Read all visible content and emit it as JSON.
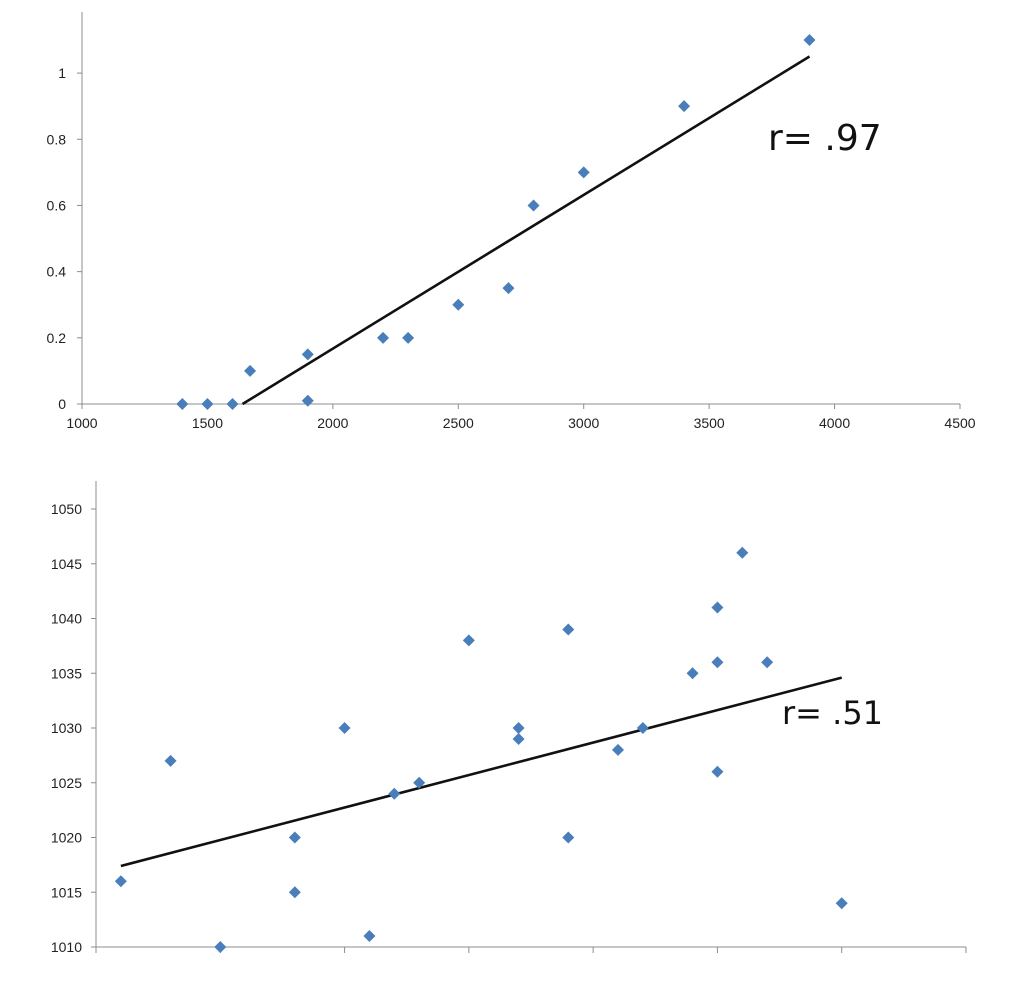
{
  "chart_data": [
    {
      "type": "scatter",
      "title": "",
      "xlabel": "",
      "ylabel": "",
      "xlim": [
        1000,
        4500
      ],
      "ylim": [
        0,
        1.1
      ],
      "x_ticks": [
        "1000",
        "1500",
        "2000",
        "2500",
        "3000",
        "3500",
        "4000",
        "4500"
      ],
      "y_ticks": [
        "0",
        "0.2",
        "0.4",
        "0.6",
        "0.8",
        "1"
      ],
      "grid": false,
      "marker_color": "#4a7ebb",
      "points": [
        {
          "x": 1400,
          "y": 0
        },
        {
          "x": 1500,
          "y": 0
        },
        {
          "x": 1600,
          "y": 0
        },
        {
          "x": 1670,
          "y": 0.1
        },
        {
          "x": 1900,
          "y": 0.15
        },
        {
          "x": 1900,
          "y": 0.01
        },
        {
          "x": 2200,
          "y": 0.2
        },
        {
          "x": 2300,
          "y": 0.2
        },
        {
          "x": 2500,
          "y": 0.3
        },
        {
          "x": 2700,
          "y": 0.35
        },
        {
          "x": 2800,
          "y": 0.6
        },
        {
          "x": 3000,
          "y": 0.7
        },
        {
          "x": 3400,
          "y": 0.9
        },
        {
          "x": 3900,
          "y": 1.1
        }
      ],
      "trendline": {
        "x1": 1640,
        "y1": 0,
        "x2": 3900,
        "y2": 1.05
      },
      "annotation": "r= .97"
    },
    {
      "type": "scatter",
      "title": "",
      "xlabel": "",
      "ylabel": "",
      "xlim": [
        0,
        35
      ],
      "ylim": [
        1010,
        1050
      ],
      "x_ticks": [],
      "y_ticks": [
        "1010",
        "1015",
        "1020",
        "1025",
        "1030",
        "1035",
        "1040",
        "1045",
        "1050"
      ],
      "grid": false,
      "marker_color": "#4a7ebb",
      "points": [
        {
          "x": 1,
          "y": 1016
        },
        {
          "x": 3,
          "y": 1027
        },
        {
          "x": 5,
          "y": 1010
        },
        {
          "x": 8,
          "y": 1020
        },
        {
          "x": 8,
          "y": 1015
        },
        {
          "x": 10,
          "y": 1030
        },
        {
          "x": 11,
          "y": 1011
        },
        {
          "x": 12,
          "y": 1024
        },
        {
          "x": 13,
          "y": 1025
        },
        {
          "x": 15,
          "y": 1038
        },
        {
          "x": 17,
          "y": 1030
        },
        {
          "x": 17,
          "y": 1029
        },
        {
          "x": 19,
          "y": 1039
        },
        {
          "x": 19,
          "y": 1020
        },
        {
          "x": 21,
          "y": 1028
        },
        {
          "x": 22,
          "y": 1030
        },
        {
          "x": 24,
          "y": 1035
        },
        {
          "x": 25,
          "y": 1041
        },
        {
          "x": 25,
          "y": 1036
        },
        {
          "x": 25,
          "y": 1026
        },
        {
          "x": 26,
          "y": 1046
        },
        {
          "x": 27,
          "y": 1036
        },
        {
          "x": 30,
          "y": 1014
        }
      ],
      "trendline": {
        "x1": 1,
        "y1": 1017.4,
        "x2": 30,
        "y2": 1034.6
      },
      "annotation": "r= .51"
    }
  ]
}
